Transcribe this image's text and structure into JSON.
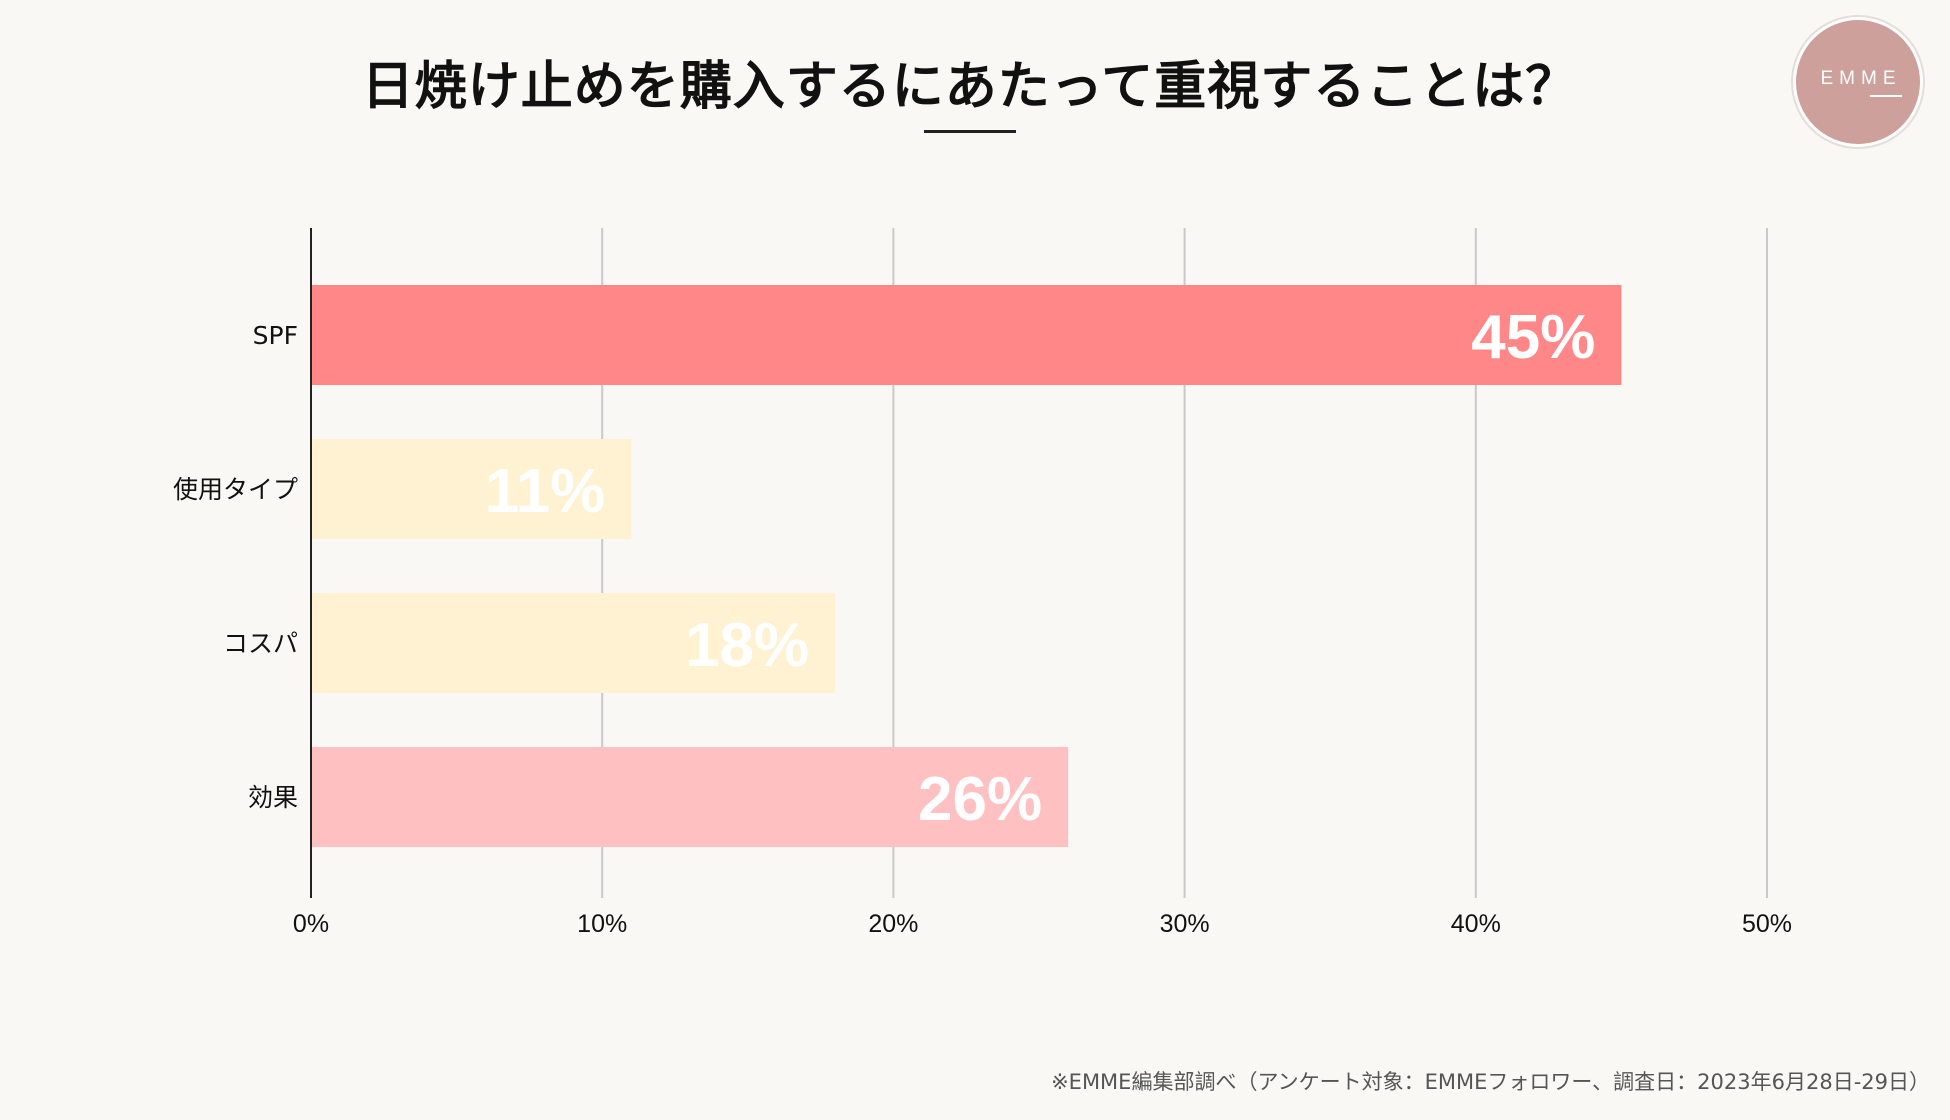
{
  "brand": {
    "logo_text": "EMME",
    "logo_color": "#cea09b"
  },
  "footnote": "※EMME編集部調べ（アンケート対象：EMMEフォロワー、調査日：2023年6月28日-29日）",
  "chart_data": {
    "type": "bar",
    "orientation": "horizontal",
    "title": "日焼け止めを購入するにあたって重視することは？",
    "xlabel": "",
    "ylabel": "",
    "categories": [
      "SPF",
      "使用タイプ",
      "コスパ",
      "効果"
    ],
    "values": [
      45,
      11,
      18,
      26
    ],
    "value_labels": [
      "45%",
      "11%",
      "18%",
      "26%"
    ],
    "bar_colors": [
      "#ff8787",
      "#fff2d3",
      "#fff2d3",
      "#ffc0c1"
    ],
    "xlim": [
      0,
      50
    ],
    "xticks": [
      0,
      10,
      20,
      30,
      40,
      50
    ],
    "xtick_labels": [
      "0%",
      "10%",
      "20%",
      "30%",
      "40%",
      "50%"
    ],
    "grid": true,
    "legend": "none"
  }
}
